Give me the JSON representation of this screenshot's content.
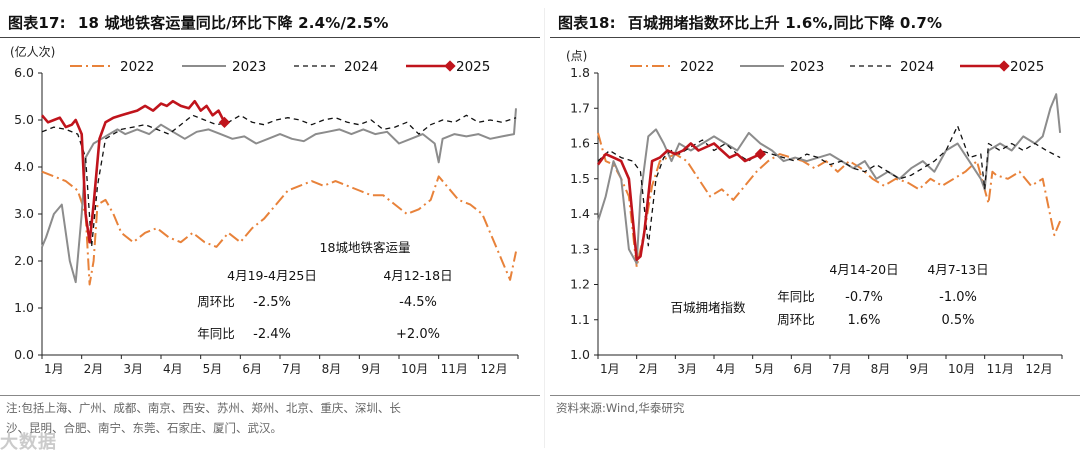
{
  "left": {
    "title_label": "图表17:",
    "title_text": "18 城地铁客运量同比/环比下降 2.4%/2.5%",
    "unit": "(亿人次)",
    "note_line1": "注:包括上海、广州、成都、南京、西安、苏州、郑州、北京、重庆、深圳、长",
    "note_line2": "沙、昆明、合肥、南宁、东莞、石家庄、厦门、武汉。",
    "table": {
      "title": "18城地铁客运量",
      "col1": "4月19-4月25日",
      "col2": "4月12-18日",
      "rows": [
        {
          "label": "周环比",
          "v1": "-2.5%",
          "v2": "-4.5%"
        },
        {
          "label": "年同比",
          "v1": "-2.4%",
          "v2": "+2.0%"
        }
      ]
    }
  },
  "right": {
    "title_label": "图表18:",
    "title_text": "百城拥堵指数环比上升 1.6%,同比下降 0.7%",
    "unit": "(点)",
    "note": "资料来源:Wind,华泰研究",
    "table": {
      "title": "百城拥堵指数",
      "col1": "4月14-20日",
      "col2": "4月7-13日",
      "rows": [
        {
          "label": "年同比",
          "v1": "-0.7%",
          "v2": "-1.0%"
        },
        {
          "label": "周环比",
          "v1": "1.6%",
          "v2": "0.5%"
        }
      ]
    }
  },
  "watermark": "大数据",
  "colors": {
    "s2022": "#E8823A",
    "s2023": "#8C8C8C",
    "s2024": "#111111",
    "s2025": "#C0141C"
  },
  "chart_data": [
    {
      "type": "line",
      "title": "18 城地铁客运量同比/环比下降 2.4%/2.5%",
      "ylabel": "(亿人次)",
      "ylim": [
        0,
        6
      ],
      "yticks": [
        "0.0",
        "1.0",
        "2.0",
        "3.0",
        "4.0",
        "5.0",
        "6.0"
      ],
      "xticks": [
        "1月",
        "2月",
        "3月",
        "4月",
        "5月",
        "6月",
        "7月",
        "8月",
        "9月",
        "10月",
        "11月",
        "12月"
      ],
      "xlim": [
        0,
        12
      ],
      "legend": "top",
      "series": [
        {
          "name": "2022",
          "x": [
            0,
            0.3,
            0.6,
            0.9,
            1.1,
            1.2,
            1.3,
            1.4,
            1.6,
            1.8,
            2.0,
            2.3,
            2.6,
            2.9,
            3.2,
            3.5,
            3.8,
            4.1,
            4.4,
            4.7,
            5.0,
            5.3,
            5.6,
            5.9,
            6.2,
            6.5,
            6.8,
            7.1,
            7.4,
            7.7,
            8.0,
            8.3,
            8.6,
            8.9,
            9.2,
            9.5,
            9.8,
            10.0,
            10.2,
            10.5,
            10.8,
            11.1,
            11.3,
            11.5,
            11.6,
            11.8,
            11.95
          ],
          "y": [
            3.9,
            3.8,
            3.7,
            3.5,
            3.0,
            1.5,
            2.0,
            3.2,
            3.3,
            3.0,
            2.6,
            2.4,
            2.6,
            2.7,
            2.5,
            2.4,
            2.6,
            2.4,
            2.3,
            2.6,
            2.4,
            2.7,
            2.9,
            3.2,
            3.5,
            3.6,
            3.7,
            3.6,
            3.7,
            3.6,
            3.5,
            3.4,
            3.4,
            3.2,
            3.0,
            3.1,
            3.3,
            3.8,
            3.6,
            3.3,
            3.2,
            3.0,
            2.6,
            2.2,
            2.0,
            1.6,
            2.2
          ]
        },
        {
          "name": "2023",
          "x": [
            0,
            0.1,
            0.3,
            0.5,
            0.7,
            0.85,
            1.0,
            1.1,
            1.3,
            1.5,
            1.7,
            1.9,
            2.1,
            2.4,
            2.7,
            3.0,
            3.3,
            3.6,
            3.9,
            4.2,
            4.5,
            4.8,
            5.1,
            5.4,
            5.7,
            6.0,
            6.3,
            6.6,
            6.9,
            7.2,
            7.5,
            7.8,
            8.1,
            8.4,
            8.7,
            9.0,
            9.3,
            9.6,
            9.9,
            10.0,
            10.1,
            10.4,
            10.7,
            11.0,
            11.3,
            11.6,
            11.9,
            11.95
          ],
          "y": [
            2.3,
            2.5,
            3.0,
            3.2,
            2.0,
            1.55,
            3.0,
            4.2,
            4.5,
            4.6,
            4.7,
            4.8,
            4.7,
            4.8,
            4.7,
            4.9,
            4.75,
            4.6,
            4.75,
            4.8,
            4.7,
            4.6,
            4.65,
            4.5,
            4.6,
            4.7,
            4.6,
            4.55,
            4.7,
            4.75,
            4.8,
            4.7,
            4.8,
            4.7,
            4.75,
            4.5,
            4.6,
            4.7,
            4.5,
            4.1,
            4.6,
            4.7,
            4.65,
            4.7,
            4.6,
            4.65,
            4.7,
            5.25
          ]
        },
        {
          "name": "2024",
          "x": [
            0,
            0.3,
            0.6,
            0.9,
            1.1,
            1.25,
            1.4,
            1.6,
            1.8,
            2.0,
            2.3,
            2.6,
            2.9,
            3.2,
            3.5,
            3.8,
            4.1,
            4.4,
            4.7,
            5.0,
            5.3,
            5.6,
            5.9,
            6.2,
            6.5,
            6.8,
            7.1,
            7.4,
            7.7,
            8.0,
            8.3,
            8.6,
            8.9,
            9.2,
            9.5,
            9.8,
            10.1,
            10.4,
            10.7,
            11.0,
            11.3,
            11.6,
            11.95
          ],
          "y": [
            4.75,
            4.85,
            4.8,
            4.7,
            4.2,
            2.3,
            3.6,
            4.6,
            4.7,
            4.8,
            4.85,
            4.9,
            4.8,
            4.7,
            4.9,
            5.1,
            5.0,
            4.9,
            4.95,
            5.1,
            4.95,
            4.9,
            5.0,
            5.05,
            5.0,
            4.9,
            5.0,
            5.05,
            4.95,
            4.9,
            5.0,
            4.8,
            4.85,
            4.95,
            4.7,
            4.9,
            5.0,
            4.95,
            5.1,
            4.95,
            5.0,
            4.95,
            5.05
          ]
        },
        {
          "name": "2025",
          "x": [
            0,
            0.15,
            0.3,
            0.45,
            0.6,
            0.75,
            0.85,
            1.0,
            1.1,
            1.2,
            1.3,
            1.45,
            1.6,
            1.8,
            2.0,
            2.2,
            2.4,
            2.6,
            2.8,
            3.0,
            3.15,
            3.3,
            3.5,
            3.7,
            3.85,
            4.0,
            4.15,
            4.3,
            4.45,
            4.6
          ],
          "y": [
            5.1,
            4.95,
            5.0,
            5.05,
            4.85,
            4.9,
            5.0,
            4.7,
            3.0,
            2.4,
            3.2,
            4.6,
            4.95,
            5.05,
            5.1,
            5.15,
            5.2,
            5.3,
            5.2,
            5.35,
            5.3,
            5.4,
            5.3,
            5.25,
            5.4,
            5.2,
            5.3,
            5.1,
            5.2,
            4.95
          ]
        }
      ]
    },
    {
      "type": "line",
      "title": "百城拥堵指数环比上升 1.6%,同比下降 0.7%",
      "ylabel": "(点)",
      "ylim": [
        1.0,
        1.8
      ],
      "yticks": [
        "1.0",
        "1.1",
        "1.2",
        "1.3",
        "1.4",
        "1.5",
        "1.6",
        "1.7",
        "1.8"
      ],
      "xticks": [
        "1月",
        "2月",
        "3月",
        "4月",
        "5月",
        "6月",
        "7月",
        "8月",
        "9月",
        "10月",
        "11月",
        "12月"
      ],
      "xlim": [
        0,
        12
      ],
      "legend": "top",
      "series": [
        {
          "name": "2022",
          "x": [
            0,
            0.2,
            0.4,
            0.6,
            0.8,
            1.0,
            1.2,
            1.4,
            1.6,
            1.8,
            2.0,
            2.3,
            2.6,
            2.9,
            3.2,
            3.5,
            3.8,
            4.1,
            4.4,
            4.7,
            5.0,
            5.3,
            5.6,
            5.9,
            6.2,
            6.5,
            6.8,
            7.1,
            7.4,
            7.7,
            8.0,
            8.3,
            8.6,
            8.9,
            9.2,
            9.5,
            9.8,
            10.1,
            10.2,
            10.3,
            10.6,
            10.9,
            11.2,
            11.5,
            11.8,
            11.95
          ],
          "y": [
            1.63,
            1.55,
            1.54,
            1.5,
            1.45,
            1.25,
            1.35,
            1.48,
            1.55,
            1.56,
            1.57,
            1.55,
            1.5,
            1.45,
            1.47,
            1.44,
            1.48,
            1.52,
            1.55,
            1.57,
            1.56,
            1.55,
            1.53,
            1.55,
            1.52,
            1.55,
            1.53,
            1.5,
            1.48,
            1.5,
            1.49,
            1.47,
            1.5,
            1.48,
            1.5,
            1.52,
            1.55,
            1.43,
            1.52,
            1.51,
            1.5,
            1.52,
            1.48,
            1.5,
            1.34,
            1.38
          ]
        },
        {
          "name": "2023",
          "x": [
            0,
            0.2,
            0.4,
            0.6,
            0.8,
            1.0,
            1.1,
            1.3,
            1.5,
            1.7,
            1.9,
            2.1,
            2.4,
            2.7,
            3.0,
            3.3,
            3.6,
            3.9,
            4.2,
            4.5,
            4.8,
            5.1,
            5.4,
            5.7,
            6.0,
            6.3,
            6.6,
            6.9,
            7.2,
            7.5,
            7.8,
            8.1,
            8.4,
            8.7,
            9.0,
            9.3,
            9.6,
            9.9,
            10.0,
            10.1,
            10.4,
            10.7,
            11.0,
            11.3,
            11.5,
            11.7,
            11.85,
            11.95
          ],
          "y": [
            1.38,
            1.45,
            1.55,
            1.5,
            1.3,
            1.26,
            1.45,
            1.62,
            1.64,
            1.6,
            1.55,
            1.6,
            1.58,
            1.6,
            1.62,
            1.6,
            1.58,
            1.63,
            1.6,
            1.58,
            1.55,
            1.56,
            1.55,
            1.56,
            1.57,
            1.55,
            1.53,
            1.55,
            1.5,
            1.52,
            1.5,
            1.53,
            1.55,
            1.52,
            1.58,
            1.6,
            1.55,
            1.5,
            1.47,
            1.58,
            1.6,
            1.58,
            1.62,
            1.6,
            1.62,
            1.7,
            1.74,
            1.63
          ]
        },
        {
          "name": "2024",
          "x": [
            0,
            0.3,
            0.6,
            0.9,
            1.1,
            1.3,
            1.5,
            1.7,
            1.9,
            2.1,
            2.4,
            2.7,
            3.0,
            3.3,
            3.6,
            3.9,
            4.2,
            4.5,
            4.8,
            5.1,
            5.4,
            5.7,
            6.0,
            6.3,
            6.6,
            6.9,
            7.2,
            7.5,
            7.8,
            8.1,
            8.4,
            8.7,
            9.0,
            9.3,
            9.6,
            9.9,
            10.0,
            10.1,
            10.4,
            10.7,
            11.0,
            11.3,
            11.6,
            11.95
          ],
          "y": [
            1.55,
            1.58,
            1.56,
            1.55,
            1.52,
            1.31,
            1.5,
            1.56,
            1.58,
            1.57,
            1.59,
            1.61,
            1.58,
            1.6,
            1.57,
            1.55,
            1.58,
            1.57,
            1.56,
            1.55,
            1.57,
            1.56,
            1.54,
            1.55,
            1.53,
            1.52,
            1.54,
            1.52,
            1.5,
            1.51,
            1.53,
            1.55,
            1.58,
            1.65,
            1.56,
            1.57,
            1.47,
            1.6,
            1.58,
            1.6,
            1.58,
            1.6,
            1.58,
            1.56
          ]
        },
        {
          "name": "2025",
          "x": [
            0,
            0.2,
            0.4,
            0.6,
            0.8,
            1.0,
            1.1,
            1.2,
            1.4,
            1.6,
            1.8,
            2.0,
            2.2,
            2.4,
            2.6,
            2.8,
            3.0,
            3.2,
            3.4,
            3.6,
            3.8,
            4.0,
            4.2,
            4.4,
            4.6,
            4.8,
            5.0,
            5.2,
            5.4,
            5.6,
            5.8,
            6.0,
            6.2,
            6.4,
            6.6,
            6.8,
            7.0,
            7.2,
            7.4,
            7.6,
            7.8,
            8.0,
            8.2,
            8.4,
            8.6,
            8.8,
            9.0,
            9.2,
            9.4,
            9.6,
            9.8,
            10.0,
            10.2,
            10.4,
            10.6,
            10.8,
            11.0,
            11.2,
            11.4,
            11.6,
            11.8,
            12.0
          ],
          "y": [
            1.54,
            1.57,
            1.56,
            1.55,
            1.5,
            1.27,
            1.28,
            1.35,
            1.55,
            1.56,
            1.58,
            1.57,
            1.58,
            1.6,
            1.58,
            1.59,
            1.6,
            1.58,
            1.56,
            1.57,
            1.55,
            1.56,
            1.57,
            null,
            null,
            null,
            null,
            null,
            null,
            null,
            null,
            null,
            null,
            null,
            null,
            null,
            null,
            null,
            null,
            null,
            null,
            null,
            null,
            null,
            null,
            null,
            null,
            null,
            null,
            null,
            null,
            null,
            null,
            null,
            null,
            null,
            null,
            null,
            null,
            null,
            null,
            null
          ]
        }
      ]
    }
  ]
}
